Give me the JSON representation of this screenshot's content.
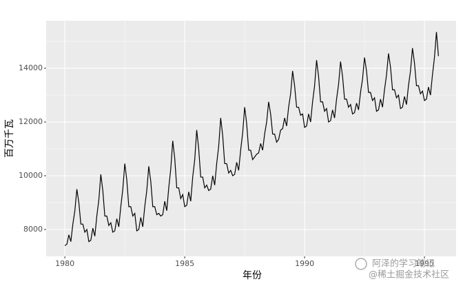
{
  "chart_data": {
    "type": "line",
    "xlabel": "年份",
    "ylabel": "百万千瓦",
    "watermark": [
      "阿泽的学习笔记",
      "@稀土掘金技术社区"
    ],
    "color": "#000000",
    "grid": true,
    "xlim": [
      1979.22,
      1996.32
    ],
    "xticks": [
      1980,
      1985,
      1990,
      1995
    ],
    "x_minor_ticks": [
      1982.5,
      1987.5,
      1992.5
    ],
    "ylim": [
      7000,
      15770
    ],
    "yticks": [
      8000,
      10000,
      12000,
      14000
    ],
    "y_minor_ticks": [
      9000,
      11000,
      13000,
      15000
    ],
    "x": [
      1980.0,
      1980.083,
      1980.167,
      1980.25,
      1980.333,
      1980.417,
      1980.5,
      1980.583,
      1980.667,
      1980.75,
      1980.833,
      1980.917,
      1981.0,
      1981.083,
      1981.167,
      1981.25,
      1981.333,
      1981.417,
      1981.5,
      1981.583,
      1981.667,
      1981.75,
      1981.833,
      1981.917,
      1982.0,
      1982.083,
      1982.167,
      1982.25,
      1982.333,
      1982.417,
      1982.5,
      1982.583,
      1982.667,
      1982.75,
      1982.833,
      1982.917,
      1983.0,
      1983.083,
      1983.167,
      1983.25,
      1983.333,
      1983.417,
      1983.5,
      1983.583,
      1983.667,
      1983.75,
      1983.833,
      1983.917,
      1984.0,
      1984.083,
      1984.167,
      1984.25,
      1984.333,
      1984.417,
      1984.5,
      1984.583,
      1984.667,
      1984.75,
      1984.833,
      1984.917,
      1985.0,
      1985.083,
      1985.167,
      1985.25,
      1985.333,
      1985.417,
      1985.5,
      1985.583,
      1985.667,
      1985.75,
      1985.833,
      1985.917,
      1986.0,
      1986.083,
      1986.167,
      1986.25,
      1986.333,
      1986.417,
      1986.5,
      1986.583,
      1986.667,
      1986.75,
      1986.833,
      1986.917,
      1987.0,
      1987.083,
      1987.167,
      1987.25,
      1987.333,
      1987.417,
      1987.5,
      1987.583,
      1987.667,
      1987.75,
      1987.833,
      1987.917,
      1988.0,
      1988.083,
      1988.167,
      1988.25,
      1988.333,
      1988.417,
      1988.5,
      1988.583,
      1988.667,
      1988.75,
      1988.833,
      1988.917,
      1989.0,
      1989.083,
      1989.167,
      1989.25,
      1989.333,
      1989.417,
      1989.5,
      1989.583,
      1989.667,
      1989.75,
      1989.833,
      1989.917,
      1990.0,
      1990.083,
      1990.167,
      1990.25,
      1990.333,
      1990.417,
      1990.5,
      1990.583,
      1990.667,
      1990.75,
      1990.833,
      1990.917,
      1991.0,
      1991.083,
      1991.167,
      1991.25,
      1991.333,
      1991.417,
      1991.5,
      1991.583,
      1991.667,
      1991.75,
      1991.833,
      1991.917,
      1992.0,
      1992.083,
      1992.167,
      1992.25,
      1992.333,
      1992.417,
      1992.5,
      1992.583,
      1992.667,
      1992.75,
      1992.833,
      1992.917,
      1993.0,
      1993.083,
      1993.167,
      1993.25,
      1993.333,
      1993.417,
      1993.5,
      1993.583,
      1993.667,
      1993.75,
      1993.833,
      1993.917,
      1994.0,
      1994.083,
      1994.167,
      1994.25,
      1994.333,
      1994.417,
      1994.5,
      1994.583,
      1994.667,
      1994.75,
      1994.833,
      1994.917,
      1995.0,
      1995.083,
      1995.167,
      1995.25,
      1995.333,
      1995.417,
      1995.5,
      1995.583
    ],
    "values": [
      7400,
      7450,
      7800,
      7550,
      8200,
      8700,
      9500,
      9000,
      8200,
      8200,
      7900,
      8000,
      7550,
      7600,
      8050,
      7750,
      8500,
      9100,
      10050,
      9450,
      8500,
      8500,
      8150,
      8250,
      7900,
      7950,
      8400,
      8100,
      8850,
      9500,
      10450,
      9850,
      8850,
      8850,
      8500,
      8600,
      7950,
      8000,
      8450,
      8100,
      8850,
      9450,
      10350,
      9800,
      8850,
      8850,
      8550,
      8600,
      8500,
      8550,
      9050,
      8700,
      9550,
      10250,
      11300,
      10650,
      9550,
      9550,
      9150,
      9300,
      8850,
      8900,
      9400,
      9050,
      9950,
      10600,
      11700,
      11000,
      9950,
      9950,
      9550,
      9650,
      9450,
      9500,
      10000,
      9650,
      10450,
      11100,
      12150,
      11500,
      10450,
      10450,
      10100,
      10200,
      10000,
      10050,
      10500,
      10200,
      10950,
      11600,
      12550,
      11950,
      10950,
      10950,
      10600,
      10700,
      10800,
      10850,
      11200,
      10950,
      11550,
      12000,
      12750,
      12300,
      11550,
      11550,
      11250,
      11350,
      11700,
      11750,
      12150,
      11850,
      12550,
      13050,
      13900,
      13350,
      12550,
      12550,
      12250,
      12300,
      11800,
      11850,
      12300,
      12000,
      12750,
      13350,
      14300,
      13700,
      12750,
      12750,
      12400,
      12500,
      12000,
      12050,
      12450,
      12150,
      12850,
      13400,
      14250,
      13700,
      12850,
      12850,
      12550,
      12650,
      12300,
      12350,
      12700,
      12450,
      13100,
      13600,
      14400,
      13900,
      13100,
      13100,
      12800,
      12900,
      12400,
      12450,
      12850,
      12550,
      13200,
      13750,
      14550,
      14050,
      13200,
      13200,
      12900,
      13000,
      12500,
      12550,
      12950,
      12650,
      13350,
      13900,
      14750,
      14200,
      13350,
      13350,
      13050,
      13150,
      12800,
      12850,
      13300,
      13000,
      13750,
      14400,
      15350,
      14450
    ]
  }
}
